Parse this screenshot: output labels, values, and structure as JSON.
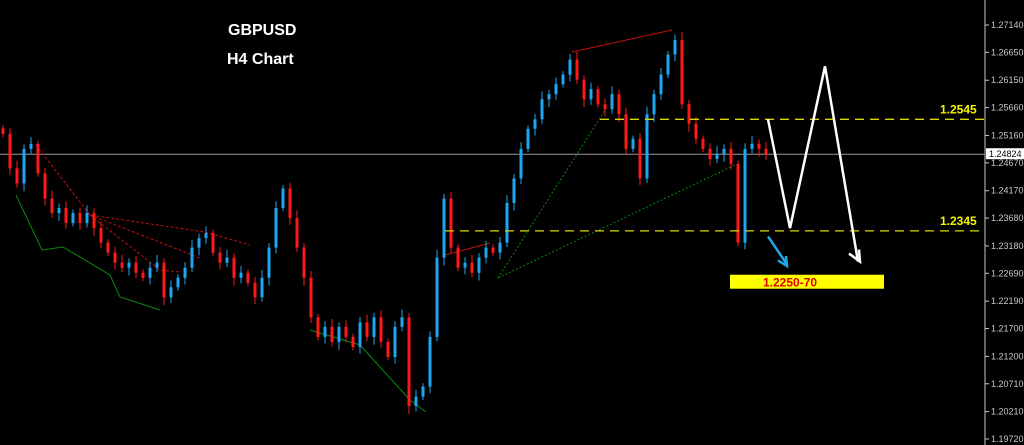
{
  "chart_data": {
    "type": "candlestick",
    "title": "GBPUSD",
    "subtitle": "H4 Chart",
    "ylim": [
      1.1972,
      1.2714
    ],
    "y_ticks": [
      "1.27140",
      "1.26650",
      "1.26150",
      "1.25660",
      "1.25160",
      "1.24670",
      "1.24170",
      "1.23680",
      "1.23180",
      "1.22690",
      "1.22190",
      "1.21700",
      "1.21200",
      "1.20710",
      "1.20210",
      "1.19720"
    ],
    "current_price": "1.24824",
    "closes": [
      1.2519,
      1.2457,
      1.243,
      1.2492,
      1.2501,
      1.2448,
      1.2403,
      1.2377,
      1.2386,
      1.2359,
      1.2377,
      1.2359,
      1.2377,
      1.235,
      1.2324,
      1.2306,
      1.2288,
      1.2279,
      1.2288,
      1.227,
      1.2261,
      1.2279,
      1.2288,
      1.2226,
      1.2244,
      1.2261,
      1.2279,
      1.2315,
      1.2332,
      1.2341,
      1.2306,
      1.2288,
      1.2297,
      1.2261,
      1.227,
      1.2252,
      1.2226,
      1.2261,
      1.2315,
      1.2386,
      1.2421,
      1.2368,
      1.2315,
      1.2261,
      1.219,
      1.2155,
      1.2173,
      1.2146,
      1.2173,
      1.2155,
      1.2137,
      1.2181,
      1.2155,
      1.219,
      1.2146,
      1.2119,
      1.2173,
      1.219,
      1.2031,
      1.2048,
      1.2066,
      1.2155,
      1.2297,
      1.2403,
      1.2315,
      1.2279,
      1.2288,
      1.227,
      1.2297,
      1.2315,
      1.2306,
      1.2324,
      1.2395,
      1.2439,
      1.2492,
      1.2528,
      1.2545,
      1.2581,
      1.259,
      1.2608,
      1.2625,
      1.2652,
      1.2616,
      1.2581,
      1.2599,
      1.2572,
      1.2563,
      1.259,
      1.2554,
      1.2492,
      1.251,
      1.2439,
      1.2554,
      1.259,
      1.2625,
      1.2661,
      1.2687,
      1.2572,
      1.2537,
      1.251,
      1.2492,
      1.2474,
      1.2483,
      1.2492,
      1.2465,
      1.2324,
      1.2492,
      1.2501,
      1.2492,
      1.24824
    ],
    "levels": [
      {
        "label": "1.2545",
        "value": 1.2545
      },
      {
        "label": "1.2345",
        "value": 1.2345
      }
    ],
    "projection_path": [
      1.2545,
      1.235,
      1.264,
      1.229
    ],
    "target": {
      "label": "1.2250-70",
      "low": 1.225,
      "high": 1.227
    },
    "colors": {
      "bull": "#1ea7f0",
      "bear": "#ff1a1a",
      "level": "#d8d800",
      "label": "#f5f500",
      "target_bg": "#ffff00",
      "target_text": "#e00000",
      "axis": "#c8c8c8"
    }
  }
}
